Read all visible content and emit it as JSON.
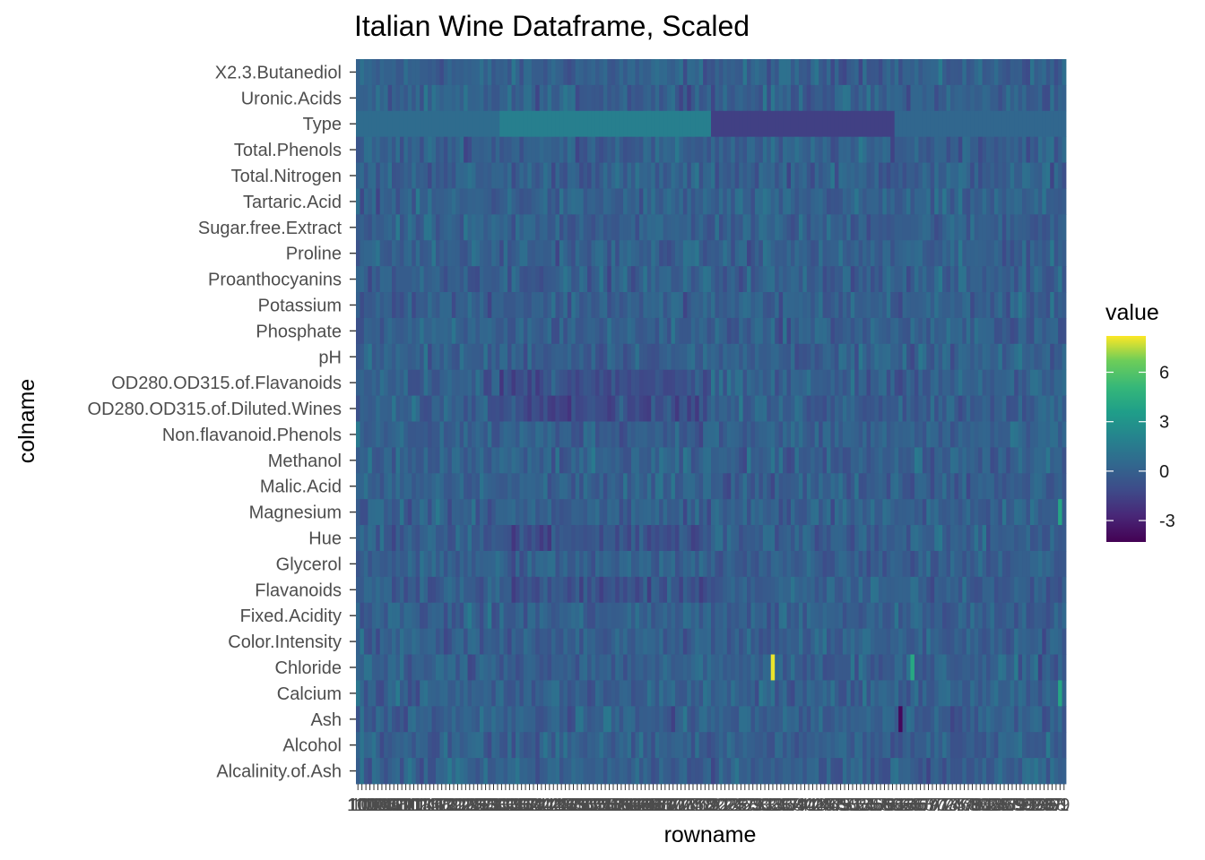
{
  "chart_data": {
    "type": "heatmap",
    "title": "Italian Wine Dataframe, Scaled",
    "xlabel": "rowname",
    "ylabel": "colname",
    "legend": {
      "title": "value",
      "ticks": [
        6,
        3,
        0,
        -3
      ],
      "position": "right",
      "range": [
        -4.3,
        8.2
      ]
    },
    "colormap": "viridis",
    "row_count": 178,
    "colnames": [
      "X2.3.Butanediol",
      "Uronic.Acids",
      "Type",
      "Total.Phenols",
      "Total.Nitrogen",
      "Tartaric.Acid",
      "Sugar.free.Extract",
      "Proline",
      "Proanthocyanins",
      "Potassium",
      "Phosphate",
      "pH",
      "OD280.OD315.of.Flavanoids",
      "OD280.OD315.of.Diluted.Wines",
      "Non.flavanoid.Phenols",
      "Methanol",
      "Malic.Acid",
      "Magnesium",
      "Hue",
      "Glycerol",
      "Flavanoids",
      "Fixed.Acidity",
      "Color.Intensity",
      "Chloride",
      "Calcium",
      "Ash",
      "Alcohol",
      "Alcalinity.of.Ash"
    ],
    "x_tick_labels_note": "",
    "highlights": [
      {
        "colname": "Chloride",
        "row": 104,
        "value": 8.0
      },
      {
        "colname": "Chloride",
        "row": 139,
        "value": 4.2
      },
      {
        "colname": "Calcium",
        "row": 176,
        "value": 4.0
      },
      {
        "colname": "Magnesium",
        "row": 176,
        "value": 4.0
      },
      {
        "colname": "Ash",
        "row": 136,
        "value": -4.0
      }
    ],
    "type_row_groups": [
      {
        "from": 0,
        "to": 35,
        "value": 0.7
      },
      {
        "from": 36,
        "to": 88,
        "value": 1.8
      },
      {
        "from": 89,
        "to": 134,
        "value": -1.6
      },
      {
        "from": 135,
        "to": 177,
        "value": 0.4
      }
    ],
    "x_tick_labels": [
      "10",
      "100",
      "101",
      "102",
      "103",
      "104",
      "105",
      "106",
      "107",
      "108",
      "109",
      "11",
      "110",
      "111",
      "112",
      "113",
      "114",
      "115",
      "116",
      "117",
      "118",
      "119",
      "12",
      "120",
      "121",
      "122",
      "123",
      "124",
      "125",
      "126",
      "127",
      "128",
      "129",
      "13",
      "130",
      "131",
      "132",
      "133",
      "134",
      "135",
      "136",
      "137",
      "138",
      "139",
      "14",
      "140",
      "141",
      "142",
      "143",
      "144",
      "145",
      "146",
      "147",
      "148",
      "149",
      "15",
      "150",
      "151",
      "152",
      "153",
      "154",
      "155",
      "156",
      "157",
      "158",
      "159",
      "16",
      "160",
      "161",
      "162",
      "163",
      "164",
      "165",
      "166",
      "167",
      "168",
      "169",
      "17",
      "170",
      "171",
      "172",
      "173",
      "174",
      "175",
      "176",
      "177",
      "178",
      "18",
      "19",
      "2",
      "20",
      "21",
      "22",
      "23",
      "24",
      "25",
      "26",
      "27",
      "28",
      "29",
      "3",
      "30",
      "31",
      "32",
      "33",
      "34",
      "35",
      "36",
      "37",
      "38",
      "39",
      "4",
      "40",
      "41",
      "42",
      "43",
      "44",
      "45",
      "46",
      "47",
      "48",
      "49",
      "5",
      "50",
      "51",
      "52",
      "53",
      "54",
      "55",
      "56",
      "57",
      "58",
      "59",
      "6",
      "60",
      "61",
      "62",
      "63",
      "64",
      "65",
      "66",
      "67",
      "68",
      "69",
      "7",
      "70",
      "71",
      "72",
      "73",
      "74",
      "75",
      "76",
      "77",
      "78",
      "79",
      "8",
      "80",
      "81",
      "82",
      "83",
      "84",
      "85",
      "86",
      "87",
      "88",
      "89",
      "9",
      "90",
      "91",
      "92",
      "93",
      "94",
      "95",
      "96",
      "97",
      "98",
      "99",
      "1"
    ]
  }
}
